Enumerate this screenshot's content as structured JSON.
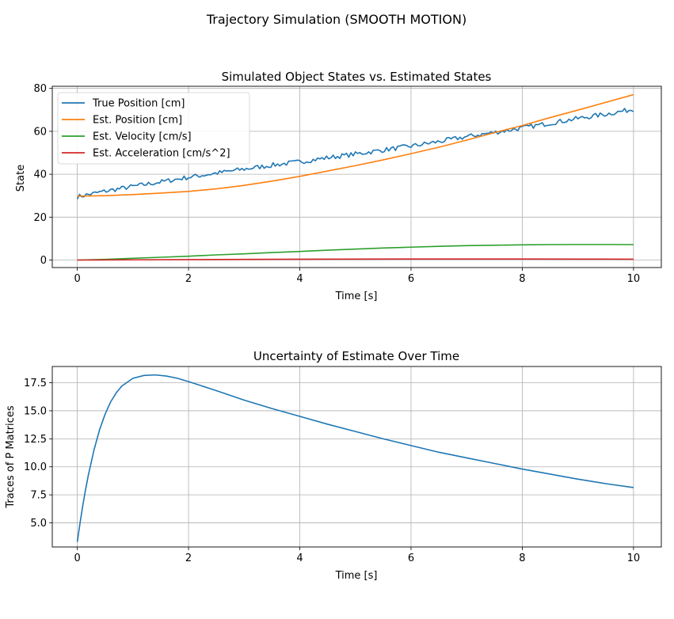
{
  "suptitle": "Trajectory Simulation (SMOOTH MOTION)",
  "chart_data": [
    {
      "type": "line",
      "title": "Simulated Object States vs. Estimated States",
      "xlabel": "Time [s]",
      "ylabel": "State",
      "xlim": [
        -0.45,
        10.5
      ],
      "ylim": [
        -3.5,
        81
      ],
      "xticks": [
        0,
        2,
        4,
        6,
        8,
        10
      ],
      "yticks": [
        0,
        20,
        40,
        60,
        80
      ],
      "grid": true,
      "legend": "top-left",
      "series": [
        {
          "name": "True Position [cm]",
          "color": "#1f77b4",
          "noisy": true,
          "x": [
            0,
            0.5,
            1,
            1.5,
            2,
            2.5,
            3,
            3.5,
            4,
            4.5,
            5,
            5.5,
            6,
            6.5,
            7,
            7.5,
            8,
            8.5,
            9,
            9.5,
            10
          ],
          "y": [
            29.5,
            32.1,
            34.3,
            36.4,
            38.6,
            40.5,
            42.4,
            44.2,
            45.8,
            47.7,
            49.4,
            51.3,
            53.1,
            55.2,
            57.5,
            59.5,
            61.6,
            63.8,
            66.0,
            68.0,
            70.3
          ]
        },
        {
          "name": "Est. Position [cm]",
          "color": "#ff7f0e",
          "x": [
            0,
            0.5,
            1,
            1.5,
            2,
            2.5,
            3,
            3.5,
            4,
            4.5,
            5,
            5.5,
            6,
            6.5,
            7,
            7.5,
            8,
            8.5,
            9,
            9.5,
            10
          ],
          "y": [
            29.8,
            30.0,
            30.5,
            31.2,
            32.0,
            33.2,
            34.8,
            36.8,
            39.0,
            41.5,
            44.0,
            46.7,
            49.6,
            52.6,
            55.9,
            59.4,
            62.7,
            66.4,
            69.9,
            73.5,
            77.1
          ]
        },
        {
          "name": "Est. Velocity [cm/s]",
          "color": "#2ca02c",
          "x": [
            0,
            0.5,
            1,
            1.5,
            2,
            2.5,
            3,
            3.5,
            4,
            4.5,
            5,
            5.5,
            6,
            6.5,
            7,
            7.5,
            8,
            8.5,
            9,
            9.5,
            10
          ],
          "y": [
            0,
            0.3,
            0.8,
            1.3,
            1.8,
            2.4,
            2.9,
            3.5,
            4.0,
            4.6,
            5.1,
            5.6,
            6.0,
            6.4,
            6.7,
            6.9,
            7.1,
            7.2,
            7.25,
            7.25,
            7.2
          ]
        },
        {
          "name": "Est. Acceleration [cm/s^2]",
          "color": "#d62728",
          "x": [
            0,
            1,
            2,
            3,
            4,
            5,
            6,
            7,
            8,
            9,
            10
          ],
          "y": [
            0,
            0.1,
            0.2,
            0.3,
            0.4,
            0.45,
            0.5,
            0.5,
            0.5,
            0.45,
            0.4
          ]
        }
      ]
    },
    {
      "type": "line",
      "title": "Uncertainty of Estimate Over Time",
      "xlabel": "Time [s]",
      "ylabel": "Traces of P Matrices",
      "xlim": [
        -0.45,
        10.5
      ],
      "ylim": [
        2.85,
        18.95
      ],
      "xticks": [
        0,
        2,
        4,
        6,
        8,
        10
      ],
      "yticks": [
        5.0,
        7.5,
        10.0,
        12.5,
        15.0,
        17.5
      ],
      "ytick_labels": [
        "5.0",
        "7.5",
        "10.0",
        "12.5",
        "15.0",
        "17.5"
      ],
      "grid": true,
      "series": [
        {
          "color": "#1f77b4",
          "x": [
            0,
            0.05,
            0.1,
            0.15,
            0.2,
            0.3,
            0.4,
            0.5,
            0.6,
            0.7,
            0.8,
            1.0,
            1.2,
            1.4,
            1.6,
            1.8,
            2.0,
            2.5,
            3.0,
            3.5,
            4.0,
            4.5,
            5.0,
            5.5,
            6.0,
            6.5,
            7.0,
            7.5,
            8.0,
            8.5,
            9.0,
            9.5,
            10.0
          ],
          "y": [
            3.3,
            5.0,
            6.6,
            8.0,
            9.3,
            11.5,
            13.3,
            14.7,
            15.8,
            16.6,
            17.2,
            17.9,
            18.15,
            18.2,
            18.1,
            17.9,
            17.6,
            16.8,
            15.95,
            15.2,
            14.5,
            13.8,
            13.15,
            12.5,
            11.9,
            11.3,
            10.8,
            10.3,
            9.8,
            9.35,
            8.9,
            8.5,
            8.15
          ]
        }
      ]
    }
  ]
}
